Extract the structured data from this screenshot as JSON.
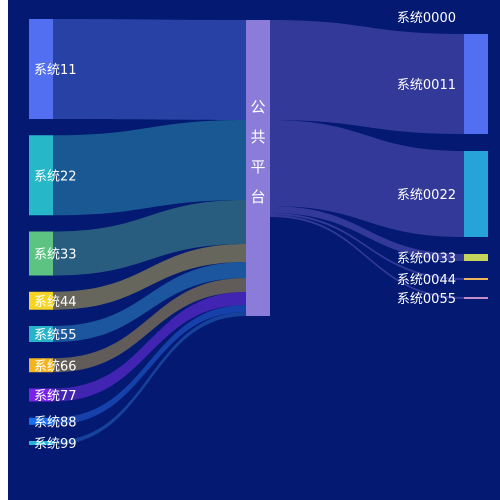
{
  "chart_data": {
    "type": "sankey",
    "title": "",
    "hub": {
      "name": "公共平台",
      "color": "#8a7cd8"
    },
    "sources": [
      {
        "name": "系统11",
        "value": 10.0,
        "color": "#516ff0",
        "flow_color": "#2a43a8"
      },
      {
        "name": "系统22",
        "value": 8.0,
        "color": "#26b7c9",
        "flow_color": "#1a5c94"
      },
      {
        "name": "系统33",
        "value": 4.4,
        "color": "#5cc382",
        "flow_color": "#2b6180"
      },
      {
        "name": "系统44",
        "value": 1.8,
        "color": "#f5d423",
        "flow_color": "#6c6a5b"
      },
      {
        "name": "系统55",
        "value": 1.6,
        "color": "#27b4c9",
        "flow_color": "#1c5aa0"
      },
      {
        "name": "系统66",
        "value": 1.4,
        "color": "#f2b51f",
        "flow_color": "#665f58"
      },
      {
        "name": "系统77",
        "value": 1.3,
        "color": "#7b24e5",
        "flow_color": "#4425b5"
      },
      {
        "name": "系统88",
        "value": 0.7,
        "color": "#1a6ff0",
        "flow_color": "#1743ad"
      },
      {
        "name": "系统99",
        "value": 0.4,
        "color": "#27b4d8",
        "flow_color": "#18449e"
      }
    ],
    "targets": [
      {
        "name": "系统0000",
        "value": 0.0,
        "color": "#3f4fb0"
      },
      {
        "name": "系统0011",
        "value": 10.0,
        "color": "#516ff0"
      },
      {
        "name": "系统0022",
        "value": 8.6,
        "color": "#26a3d9"
      },
      {
        "name": "系统0033",
        "value": 0.7,
        "color": "#c5d45a"
      },
      {
        "name": "系统0044",
        "value": 0.2,
        "color": "#f0b65a"
      },
      {
        "name": "系统0055",
        "value": 0.2,
        "color": "#c48ec8"
      }
    ],
    "target_flow_color": "#3b3fa0"
  }
}
